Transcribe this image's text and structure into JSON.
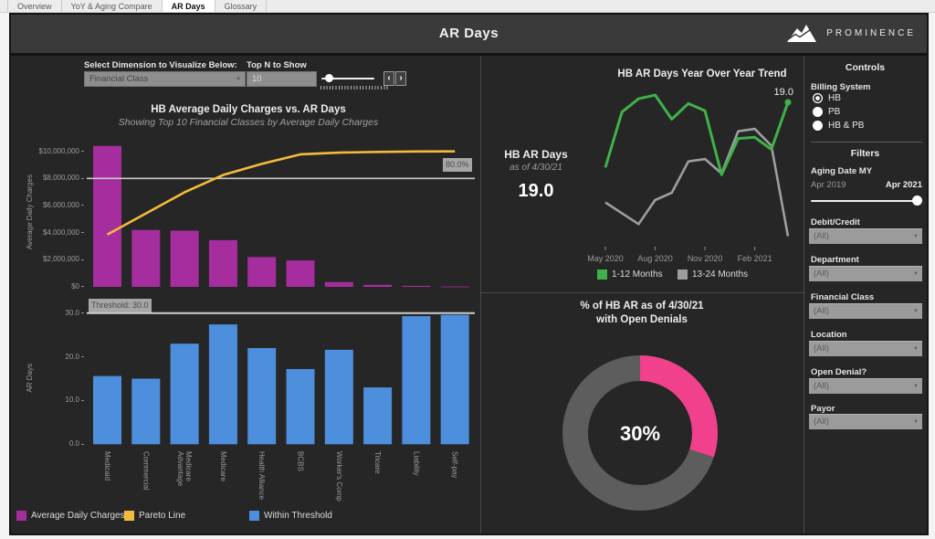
{
  "tabs": {
    "items": [
      {
        "label": "Overview",
        "active": false
      },
      {
        "label": "YoY & Aging Compare",
        "active": false
      },
      {
        "label": "AR Days",
        "active": true
      },
      {
        "label": "Glossary",
        "active": false
      }
    ]
  },
  "header": {
    "title": "AR Days",
    "brand": "PROMINENCE"
  },
  "left_panel": {
    "dimension_label": "Select Dimension to Visualize Below:",
    "dimension_value": "Financial Class",
    "topn_label": "Top N to Show",
    "topn_value": "10",
    "legend": [
      {
        "label": "Average Daily Charges",
        "color": "#a62d9e"
      },
      {
        "label": "Pareto Line",
        "color": "#f3bb3b"
      },
      {
        "label": "Within Threshold",
        "color": "#4d8fdc"
      }
    ]
  },
  "chart_data": [
    {
      "type": "bar+line",
      "name": "pareto",
      "title": "HB Average Daily Charges vs. AR Days",
      "subtitle": "Showing Top 10 Financial Classes by Average Daily Charges",
      "ylabel": "Average Daily Charges",
      "categories": [
        "Medicaid",
        "Commercial",
        "Medicare Advantage",
        "Medicare",
        "Health Alliance",
        "BCBS",
        "Worker's Comp",
        "Tricare",
        "Liability",
        "Self-pay"
      ],
      "bar_values": [
        10400000,
        4200000,
        4150000,
        3450000,
        2200000,
        1950000,
        350000,
        150000,
        70000,
        25000
      ],
      "pareto_pct": [
        38.6,
        54.2,
        69.8,
        82.6,
        90.8,
        97.8,
        99.1,
        99.6,
        99.9,
        100
      ],
      "reference_line_pct": 80.0,
      "reference_label": "80.0%",
      "ytick_labels": [
        "$0",
        "$2,000,000",
        "$4,000,000",
        "$6,000,000",
        "$8,000,000",
        "$10,000,000"
      ],
      "ylim": [
        0,
        10000000
      ],
      "bar_color": "#a62d9e",
      "line_color": "#f3bb3b"
    },
    {
      "type": "bar",
      "name": "ar_days",
      "ylabel": "AR Days",
      "categories": [
        "Medicaid",
        "Commercial",
        "Medicare Advantage",
        "Medicare",
        "Health Alliance",
        "BCBS",
        "Worker's Comp",
        "Tricare",
        "Liability",
        "Self-pay"
      ],
      "values": [
        15.6,
        15.0,
        23.0,
        27.4,
        22.0,
        17.2,
        21.6,
        13.0,
        29.3,
        29.6
      ],
      "threshold": 30.0,
      "threshold_label": "Threshold: 30.0",
      "ytick_labels": [
        "0.0",
        "10.0",
        "20.0",
        "30.0"
      ],
      "ylim": [
        0,
        30
      ],
      "bar_color": "#4d8fdc"
    },
    {
      "type": "line",
      "name": "trend",
      "title": "HB AR Days Year Over Year Trend",
      "x_tick_labels": [
        "May 2020",
        "Aug 2020",
        "Nov 2020",
        "Feb 2021"
      ],
      "x_tick_indices": [
        0,
        3,
        6,
        9
      ],
      "series": [
        {
          "name": "1-12 Months",
          "color": "#3fb14a",
          "values": [
            13.6,
            18.2,
            19.3,
            19.6,
            17.6,
            18.9,
            18.3,
            13.0,
            16.0,
            16.1,
            15.1,
            19.0
          ]
        },
        {
          "name": "13-24 Months",
          "color": "#9e9e9e",
          "values": [
            10.7,
            9.8,
            8.9,
            10.9,
            11.5,
            14.1,
            14.3,
            13.1,
            16.6,
            16.8,
            15.4,
            7.9
          ]
        }
      ],
      "end_label": "19.0",
      "kpi": {
        "title": "HB AR Days",
        "subtitle": "as of 4/30/21",
        "value": "19.0"
      }
    },
    {
      "type": "donut",
      "name": "open_denials",
      "title_line1": "% of HB AR as of 4/30/21",
      "title_line2": "with Open Denials",
      "value_pct": 30,
      "center_label": "30%",
      "slice_color": "#f2418c",
      "remainder_color": "#5d5d5d"
    }
  ],
  "right_panel": {
    "controls_title": "Controls",
    "billing_label": "Billing System",
    "billing_options": [
      {
        "label": "HB",
        "selected": true
      },
      {
        "label": "PB",
        "selected": false
      },
      {
        "label": "HB & PB",
        "selected": false
      }
    ],
    "filters_title": "Filters",
    "aging": {
      "label": "Aging Date MY",
      "min": "Apr 2019",
      "max": "Apr 2021"
    },
    "filters": [
      {
        "label": "Debit/Credit",
        "value": "(All)"
      },
      {
        "label": "Department",
        "value": "(All)"
      },
      {
        "label": "Financial Class",
        "value": "(All)"
      },
      {
        "label": "Location",
        "value": "(All)"
      },
      {
        "label": "Open Denial?",
        "value": "(All)"
      },
      {
        "label": "Payor",
        "value": "(All)"
      }
    ]
  }
}
